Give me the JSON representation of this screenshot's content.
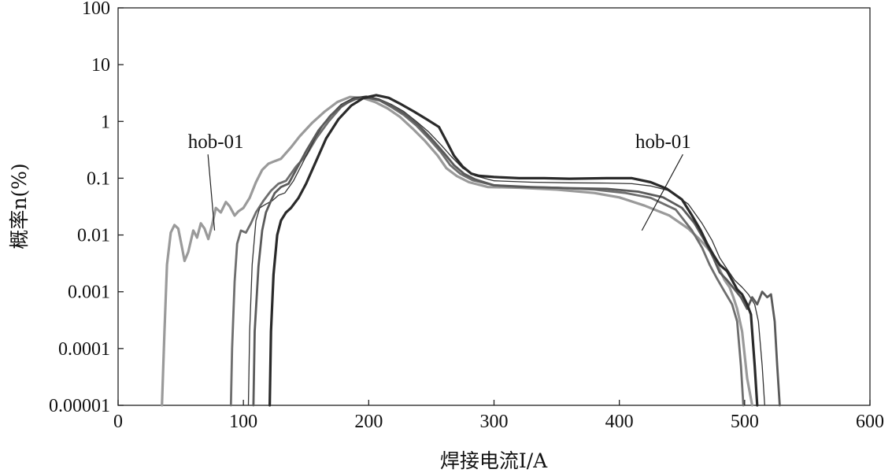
{
  "chart_data": {
    "type": "line",
    "title": "",
    "xlabel": "焊接电流I/A",
    "ylabel": "概率n(%)",
    "xlim": [
      0,
      600
    ],
    "ylim": [
      1e-05,
      100
    ],
    "yscale": "log",
    "grid": false,
    "x_ticks": [
      "0",
      "100",
      "200",
      "300",
      "400",
      "500",
      "600"
    ],
    "y_ticks": [
      "0.00001",
      "0.0001",
      "0.001",
      "0.01",
      "0.1",
      "1",
      "10",
      "100"
    ],
    "annotations": [
      {
        "text": "hob-01",
        "label_at": [
          78,
          0.28
        ],
        "points_to": [
          77,
          0.012
        ]
      },
      {
        "text": "hob-01",
        "label_at": [
          435,
          0.28
        ],
        "points_to": [
          418,
          0.012
        ]
      }
    ],
    "series": [
      {
        "color": "#9a9a9a",
        "width": 3.2,
        "points": [
          [
            35,
            1e-05
          ],
          [
            37,
            0.0002
          ],
          [
            39,
            0.003
          ],
          [
            42,
            0.011
          ],
          [
            45,
            0.015
          ],
          [
            48,
            0.013
          ],
          [
            51,
            0.006
          ],
          [
            53,
            0.0035
          ],
          [
            56,
            0.005
          ],
          [
            60,
            0.012
          ],
          [
            63,
            0.009
          ],
          [
            66,
            0.016
          ],
          [
            69,
            0.013
          ],
          [
            72,
            0.0085
          ],
          [
            75,
            0.015
          ],
          [
            78,
            0.03
          ],
          [
            82,
            0.025
          ],
          [
            86,
            0.038
          ],
          [
            89,
            0.032
          ],
          [
            93,
            0.022
          ],
          [
            96,
            0.026
          ],
          [
            100,
            0.03
          ],
          [
            105,
            0.045
          ],
          [
            110,
            0.085
          ],
          [
            115,
            0.14
          ],
          [
            120,
            0.18
          ],
          [
            125,
            0.2
          ],
          [
            130,
            0.22
          ],
          [
            138,
            0.35
          ],
          [
            145,
            0.55
          ],
          [
            155,
            0.95
          ],
          [
            165,
            1.5
          ],
          [
            175,
            2.2
          ],
          [
            185,
            2.7
          ],
          [
            195,
            2.6
          ],
          [
            205,
            2.2
          ],
          [
            215,
            1.7
          ],
          [
            225,
            1.2
          ],
          [
            235,
            0.75
          ],
          [
            245,
            0.45
          ],
          [
            255,
            0.25
          ],
          [
            262,
            0.15
          ],
          [
            270,
            0.11
          ],
          [
            280,
            0.085
          ],
          [
            295,
            0.07
          ],
          [
            320,
            0.068
          ],
          [
            350,
            0.063
          ],
          [
            380,
            0.055
          ],
          [
            400,
            0.046
          ],
          [
            420,
            0.033
          ],
          [
            440,
            0.022
          ],
          [
            455,
            0.013
          ],
          [
            465,
            0.008
          ],
          [
            475,
            0.0045
          ],
          [
            480,
            0.0025
          ],
          [
            484,
            0.0016
          ],
          [
            488,
            0.0012
          ],
          [
            491,
            0.0008
          ],
          [
            494,
            0.0005
          ],
          [
            498,
            0.0002
          ],
          [
            502,
            3e-05
          ],
          [
            506,
            1e-05
          ]
        ]
      },
      {
        "color": "#6e6e6e",
        "width": 2.8,
        "points": [
          [
            90,
            1e-05
          ],
          [
            91,
            0.0001
          ],
          [
            93,
            0.0015
          ],
          [
            95,
            0.007
          ],
          [
            98,
            0.012
          ],
          [
            102,
            0.011
          ],
          [
            106,
            0.016
          ],
          [
            110,
            0.025
          ],
          [
            116,
            0.04
          ],
          [
            122,
            0.06
          ],
          [
            128,
            0.08
          ],
          [
            134,
            0.09
          ],
          [
            142,
            0.16
          ],
          [
            150,
            0.25
          ],
          [
            158,
            0.5
          ],
          [
            168,
            1.0
          ],
          [
            178,
            1.8
          ],
          [
            188,
            2.5
          ],
          [
            198,
            2.7
          ],
          [
            208,
            2.4
          ],
          [
            218,
            1.8
          ],
          [
            228,
            1.3
          ],
          [
            238,
            0.85
          ],
          [
            248,
            0.5
          ],
          [
            258,
            0.28
          ],
          [
            265,
            0.17
          ],
          [
            273,
            0.12
          ],
          [
            283,
            0.092
          ],
          [
            300,
            0.075
          ],
          [
            320,
            0.07
          ],
          [
            350,
            0.068
          ],
          [
            380,
            0.063
          ],
          [
            405,
            0.055
          ],
          [
            425,
            0.045
          ],
          [
            445,
            0.028
          ],
          [
            458,
            0.012
          ],
          [
            466,
            0.006
          ],
          [
            472,
            0.003
          ],
          [
            478,
            0.0017
          ],
          [
            484,
            0.001
          ],
          [
            490,
            0.0006
          ],
          [
            494,
            0.0003
          ],
          [
            497,
            5e-05
          ],
          [
            499,
            1e-05
          ]
        ]
      },
      {
        "color": "#333333",
        "width": 1.3,
        "points": [
          [
            104,
            1e-05
          ],
          [
            105,
            0.0002
          ],
          [
            107,
            0.003
          ],
          [
            110,
            0.018
          ],
          [
            113,
            0.03
          ],
          [
            118,
            0.035
          ],
          [
            123,
            0.04
          ],
          [
            128,
            0.05
          ],
          [
            133,
            0.055
          ],
          [
            140,
            0.09
          ],
          [
            148,
            0.2
          ],
          [
            158,
            0.55
          ],
          [
            168,
            1.2
          ],
          [
            178,
            2.0
          ],
          [
            188,
            2.6
          ],
          [
            198,
            2.8
          ],
          [
            208,
            2.5
          ],
          [
            218,
            2.0
          ],
          [
            228,
            1.5
          ],
          [
            238,
            1.0
          ],
          [
            248,
            0.65
          ],
          [
            258,
            0.38
          ],
          [
            266,
            0.24
          ],
          [
            275,
            0.15
          ],
          [
            285,
            0.11
          ],
          [
            300,
            0.09
          ],
          [
            330,
            0.085
          ],
          [
            360,
            0.083
          ],
          [
            390,
            0.082
          ],
          [
            410,
            0.08
          ],
          [
            425,
            0.073
          ],
          [
            440,
            0.06
          ],
          [
            455,
            0.035
          ],
          [
            466,
            0.016
          ],
          [
            474,
            0.008
          ],
          [
            480,
            0.004
          ],
          [
            486,
            0.0025
          ],
          [
            492,
            0.0016
          ],
          [
            498,
            0.0012
          ],
          [
            503,
            0.0009
          ],
          [
            508,
            0.0006
          ],
          [
            511,
            0.0003
          ],
          [
            514,
            5e-05
          ],
          [
            516,
            1e-05
          ]
        ]
      },
      {
        "color": "#5a5a5a",
        "width": 2.8,
        "points": [
          [
            108,
            1e-05
          ],
          [
            109,
            0.0002
          ],
          [
            112,
            0.0028
          ],
          [
            115,
            0.012
          ],
          [
            118,
            0.025
          ],
          [
            122,
            0.04
          ],
          [
            125,
            0.055
          ],
          [
            130,
            0.07
          ],
          [
            136,
            0.08
          ],
          [
            142,
            0.14
          ],
          [
            150,
            0.3
          ],
          [
            160,
            0.7
          ],
          [
            170,
            1.3
          ],
          [
            180,
            2.0
          ],
          [
            190,
            2.5
          ],
          [
            200,
            2.6
          ],
          [
            210,
            2.3
          ],
          [
            220,
            1.8
          ],
          [
            230,
            1.3
          ],
          [
            240,
            0.85
          ],
          [
            250,
            0.5
          ],
          [
            260,
            0.28
          ],
          [
            268,
            0.17
          ],
          [
            276,
            0.12
          ],
          [
            285,
            0.095
          ],
          [
            300,
            0.075
          ],
          [
            330,
            0.07
          ],
          [
            360,
            0.067
          ],
          [
            390,
            0.065
          ],
          [
            415,
            0.058
          ],
          [
            435,
            0.046
          ],
          [
            450,
            0.03
          ],
          [
            460,
            0.016
          ],
          [
            468,
            0.008
          ],
          [
            475,
            0.004
          ],
          [
            480,
            0.0022
          ],
          [
            486,
            0.0016
          ],
          [
            492,
            0.0011
          ],
          [
            497,
            0.0008
          ],
          [
            502,
            0.0005
          ],
          [
            506,
            0.0008
          ],
          [
            510,
            0.0006
          ],
          [
            514,
            0.001
          ],
          [
            518,
            0.0008
          ],
          [
            521,
            0.0009
          ],
          [
            524,
            0.0003
          ],
          [
            526,
            5e-05
          ],
          [
            528,
            1e-05
          ]
        ]
      },
      {
        "color": "#2a2a2a",
        "width": 3.2,
        "points": [
          [
            121,
            1e-05
          ],
          [
            122,
            0.0002
          ],
          [
            124,
            0.002
          ],
          [
            127,
            0.01
          ],
          [
            130,
            0.018
          ],
          [
            134,
            0.025
          ],
          [
            138,
            0.03
          ],
          [
            144,
            0.045
          ],
          [
            150,
            0.08
          ],
          [
            158,
            0.2
          ],
          [
            166,
            0.5
          ],
          [
            176,
            1.1
          ],
          [
            186,
            1.9
          ],
          [
            196,
            2.6
          ],
          [
            206,
            2.9
          ],
          [
            216,
            2.6
          ],
          [
            226,
            2.0
          ],
          [
            236,
            1.5
          ],
          [
            246,
            1.1
          ],
          [
            256,
            0.8
          ],
          [
            262,
            0.45
          ],
          [
            268,
            0.25
          ],
          [
            275,
            0.16
          ],
          [
            282,
            0.12
          ],
          [
            288,
            0.11
          ],
          [
            300,
            0.105
          ],
          [
            320,
            0.1
          ],
          [
            340,
            0.1
          ],
          [
            360,
            0.098
          ],
          [
            390,
            0.1
          ],
          [
            410,
            0.1
          ],
          [
            425,
            0.085
          ],
          [
            438,
            0.065
          ],
          [
            450,
            0.042
          ],
          [
            458,
            0.022
          ],
          [
            465,
            0.012
          ],
          [
            470,
            0.007
          ],
          [
            475,
            0.0045
          ],
          [
            480,
            0.003
          ],
          [
            486,
            0.0023
          ],
          [
            490,
            0.0016
          ],
          [
            494,
            0.0011
          ],
          [
            498,
            0.0009
          ],
          [
            502,
            0.0006
          ],
          [
            505,
            0.0004
          ],
          [
            508,
            5e-05
          ],
          [
            510,
            1e-05
          ]
        ]
      }
    ]
  }
}
